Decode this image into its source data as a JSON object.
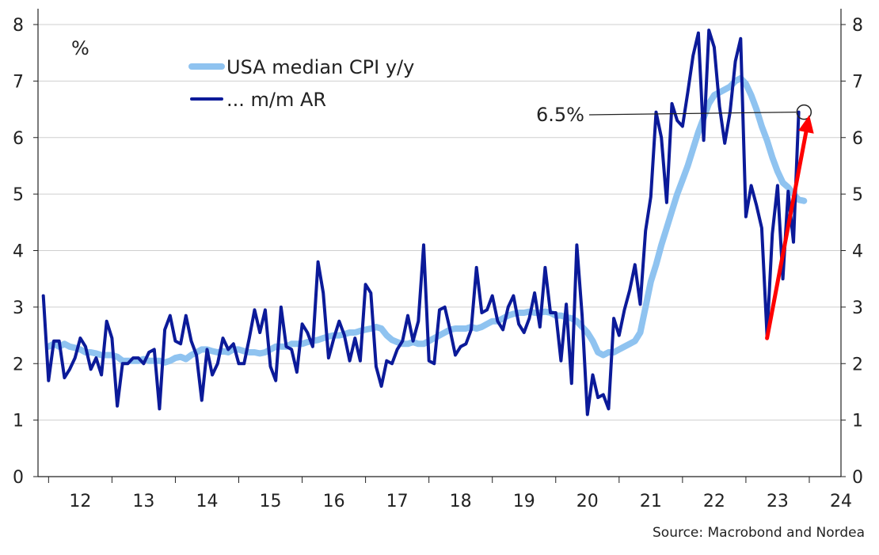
{
  "chart_data": {
    "type": "line",
    "unit_label": "%",
    "source": "Source: Macrobond and Nordea",
    "ylim": [
      0,
      8
    ],
    "y_ticks": [
      "0",
      "1",
      "2",
      "3",
      "4",
      "5",
      "6",
      "7",
      "8"
    ],
    "x_ticks": [
      "12",
      "13",
      "14",
      "15",
      "16",
      "17",
      "18",
      "19",
      "20",
      "21",
      "22",
      "23",
      "24"
    ],
    "xlim": [
      "2011-11",
      "2024-07"
    ],
    "grid": true,
    "legend_position": "top-left",
    "annotation": {
      "label": "6.5%",
      "date": "2023-12",
      "value": 6.45
    },
    "trend_arrow": {
      "from": {
        "date": "2023-05",
        "value": 2.45
      },
      "to": {
        "date": "2024-01",
        "value": 6.4
      },
      "color": "#ff0000"
    },
    "series": [
      {
        "name": "USA median CPI y/y",
        "color": "#8fc3f0",
        "points": [
          [
            "2012-01",
            2.3
          ],
          [
            "2012-02",
            2.35
          ],
          [
            "2012-03",
            2.3
          ],
          [
            "2012-04",
            2.35
          ],
          [
            "2012-05",
            2.3
          ],
          [
            "2012-06",
            2.28
          ],
          [
            "2012-07",
            2.25
          ],
          [
            "2012-08",
            2.2
          ],
          [
            "2012-09",
            2.2
          ],
          [
            "2012-10",
            2.18
          ],
          [
            "2012-11",
            2.15
          ],
          [
            "2012-12",
            2.15
          ],
          [
            "2013-01",
            2.15
          ],
          [
            "2013-02",
            2.12
          ],
          [
            "2013-03",
            2.05
          ],
          [
            "2013-04",
            2.05
          ],
          [
            "2013-05",
            2.05
          ],
          [
            "2013-06",
            2.05
          ],
          [
            "2013-07",
            2.08
          ],
          [
            "2013-08",
            2.05
          ],
          [
            "2013-09",
            2.05
          ],
          [
            "2013-10",
            2.05
          ],
          [
            "2013-11",
            2.02
          ],
          [
            "2013-12",
            2.05
          ],
          [
            "2014-01",
            2.1
          ],
          [
            "2014-02",
            2.12
          ],
          [
            "2014-03",
            2.08
          ],
          [
            "2014-04",
            2.15
          ],
          [
            "2014-05",
            2.2
          ],
          [
            "2014-06",
            2.25
          ],
          [
            "2014-07",
            2.25
          ],
          [
            "2014-08",
            2.22
          ],
          [
            "2014-09",
            2.2
          ],
          [
            "2014-10",
            2.22
          ],
          [
            "2014-11",
            2.2
          ],
          [
            "2014-12",
            2.25
          ],
          [
            "2015-01",
            2.25
          ],
          [
            "2015-02",
            2.22
          ],
          [
            "2015-03",
            2.2
          ],
          [
            "2015-04",
            2.2
          ],
          [
            "2015-05",
            2.18
          ],
          [
            "2015-06",
            2.2
          ],
          [
            "2015-07",
            2.25
          ],
          [
            "2015-08",
            2.3
          ],
          [
            "2015-09",
            2.3
          ],
          [
            "2015-10",
            2.3
          ],
          [
            "2015-11",
            2.35
          ],
          [
            "2015-12",
            2.35
          ],
          [
            "2016-01",
            2.35
          ],
          [
            "2016-02",
            2.38
          ],
          [
            "2016-03",
            2.4
          ],
          [
            "2016-04",
            2.42
          ],
          [
            "2016-05",
            2.45
          ],
          [
            "2016-06",
            2.48
          ],
          [
            "2016-07",
            2.5
          ],
          [
            "2016-08",
            2.5
          ],
          [
            "2016-09",
            2.52
          ],
          [
            "2016-10",
            2.55
          ],
          [
            "2016-11",
            2.55
          ],
          [
            "2016-12",
            2.58
          ],
          [
            "2017-01",
            2.6
          ],
          [
            "2017-02",
            2.62
          ],
          [
            "2017-03",
            2.65
          ],
          [
            "2017-04",
            2.62
          ],
          [
            "2017-05",
            2.5
          ],
          [
            "2017-06",
            2.42
          ],
          [
            "2017-07",
            2.38
          ],
          [
            "2017-08",
            2.35
          ],
          [
            "2017-09",
            2.35
          ],
          [
            "2017-10",
            2.38
          ],
          [
            "2017-11",
            2.35
          ],
          [
            "2017-12",
            2.35
          ],
          [
            "2018-01",
            2.4
          ],
          [
            "2018-02",
            2.45
          ],
          [
            "2018-03",
            2.5
          ],
          [
            "2018-04",
            2.55
          ],
          [
            "2018-05",
            2.6
          ],
          [
            "2018-06",
            2.62
          ],
          [
            "2018-07",
            2.62
          ],
          [
            "2018-08",
            2.62
          ],
          [
            "2018-09",
            2.65
          ],
          [
            "2018-10",
            2.62
          ],
          [
            "2018-11",
            2.65
          ],
          [
            "2018-12",
            2.7
          ],
          [
            "2019-01",
            2.75
          ],
          [
            "2019-02",
            2.75
          ],
          [
            "2019-03",
            2.8
          ],
          [
            "2019-04",
            2.85
          ],
          [
            "2019-05",
            2.88
          ],
          [
            "2019-06",
            2.9
          ],
          [
            "2019-07",
            2.9
          ],
          [
            "2019-08",
            2.92
          ],
          [
            "2019-09",
            2.9
          ],
          [
            "2019-10",
            2.9
          ],
          [
            "2019-11",
            2.92
          ],
          [
            "2019-12",
            2.9
          ],
          [
            "2020-01",
            2.85
          ],
          [
            "2020-02",
            2.85
          ],
          [
            "2020-03",
            2.82
          ],
          [
            "2020-04",
            2.8
          ],
          [
            "2020-05",
            2.75
          ],
          [
            "2020-06",
            2.65
          ],
          [
            "2020-07",
            2.55
          ],
          [
            "2020-08",
            2.4
          ],
          [
            "2020-09",
            2.2
          ],
          [
            "2020-10",
            2.15
          ],
          [
            "2020-11",
            2.2
          ],
          [
            "2020-12",
            2.2
          ],
          [
            "2021-01",
            2.25
          ],
          [
            "2021-02",
            2.3
          ],
          [
            "2021-03",
            2.35
          ],
          [
            "2021-04",
            2.4
          ],
          [
            "2021-05",
            2.55
          ],
          [
            "2021-06",
            3.0
          ],
          [
            "2021-07",
            3.45
          ],
          [
            "2021-08",
            3.75
          ],
          [
            "2021-09",
            4.1
          ],
          [
            "2021-10",
            4.4
          ],
          [
            "2021-11",
            4.7
          ],
          [
            "2021-12",
            5.0
          ],
          [
            "2022-01",
            5.25
          ],
          [
            "2022-02",
            5.5
          ],
          [
            "2022-03",
            5.8
          ],
          [
            "2022-04",
            6.1
          ],
          [
            "2022-05",
            6.35
          ],
          [
            "2022-06",
            6.6
          ],
          [
            "2022-07",
            6.75
          ],
          [
            "2022-08",
            6.8
          ],
          [
            "2022-09",
            6.85
          ],
          [
            "2022-10",
            6.9
          ],
          [
            "2022-11",
            7.0
          ],
          [
            "2022-12",
            7.05
          ],
          [
            "2023-01",
            6.95
          ],
          [
            "2023-02",
            6.75
          ],
          [
            "2023-03",
            6.5
          ],
          [
            "2023-04",
            6.2
          ],
          [
            "2023-05",
            5.95
          ],
          [
            "2023-06",
            5.65
          ],
          [
            "2023-07",
            5.4
          ],
          [
            "2023-08",
            5.2
          ],
          [
            "2023-09",
            5.12
          ],
          [
            "2023-10",
            5.0
          ],
          [
            "2023-11",
            4.9
          ],
          [
            "2023-12",
            4.88
          ]
        ]
      },
      {
        "name": "... m/m AR",
        "color": "#0b1a99",
        "points": [
          [
            "2011-12",
            3.2
          ],
          [
            "2012-01",
            1.7
          ],
          [
            "2012-02",
            2.4
          ],
          [
            "2012-03",
            2.4
          ],
          [
            "2012-04",
            1.75
          ],
          [
            "2012-05",
            1.9
          ],
          [
            "2012-06",
            2.1
          ],
          [
            "2012-07",
            2.45
          ],
          [
            "2012-08",
            2.3
          ],
          [
            "2012-09",
            1.9
          ],
          [
            "2012-10",
            2.1
          ],
          [
            "2012-11",
            1.8
          ],
          [
            "2012-12",
            2.75
          ],
          [
            "2013-01",
            2.45
          ],
          [
            "2013-02",
            1.25
          ],
          [
            "2013-03",
            2.0
          ],
          [
            "2013-04",
            2.0
          ],
          [
            "2013-05",
            2.1
          ],
          [
            "2013-06",
            2.1
          ],
          [
            "2013-07",
            2.0
          ],
          [
            "2013-08",
            2.2
          ],
          [
            "2013-09",
            2.25
          ],
          [
            "2013-10",
            1.2
          ],
          [
            "2013-11",
            2.6
          ],
          [
            "2013-12",
            2.85
          ],
          [
            "2014-01",
            2.4
          ],
          [
            "2014-02",
            2.35
          ],
          [
            "2014-03",
            2.85
          ],
          [
            "2014-04",
            2.4
          ],
          [
            "2014-05",
            2.15
          ],
          [
            "2014-06",
            1.35
          ],
          [
            "2014-07",
            2.25
          ],
          [
            "2014-08",
            1.8
          ],
          [
            "2014-09",
            2.0
          ],
          [
            "2014-10",
            2.45
          ],
          [
            "2014-11",
            2.25
          ],
          [
            "2014-12",
            2.35
          ],
          [
            "2015-01",
            2.0
          ],
          [
            "2015-02",
            2.0
          ],
          [
            "2015-03",
            2.45
          ],
          [
            "2015-04",
            2.95
          ],
          [
            "2015-05",
            2.55
          ],
          [
            "2015-06",
            2.95
          ],
          [
            "2015-07",
            1.95
          ],
          [
            "2015-08",
            1.7
          ],
          [
            "2015-09",
            3.0
          ],
          [
            "2015-10",
            2.3
          ],
          [
            "2015-11",
            2.25
          ],
          [
            "2015-12",
            1.85
          ],
          [
            "2016-01",
            2.7
          ],
          [
            "2016-02",
            2.55
          ],
          [
            "2016-03",
            2.3
          ],
          [
            "2016-04",
            3.8
          ],
          [
            "2016-05",
            3.25
          ],
          [
            "2016-06",
            2.1
          ],
          [
            "2016-07",
            2.45
          ],
          [
            "2016-08",
            2.75
          ],
          [
            "2016-09",
            2.5
          ],
          [
            "2016-10",
            2.05
          ],
          [
            "2016-11",
            2.45
          ],
          [
            "2016-12",
            2.05
          ],
          [
            "2017-01",
            3.4
          ],
          [
            "2017-02",
            3.25
          ],
          [
            "2017-03",
            1.95
          ],
          [
            "2017-04",
            1.6
          ],
          [
            "2017-05",
            2.05
          ],
          [
            "2017-06",
            2.0
          ],
          [
            "2017-07",
            2.25
          ],
          [
            "2017-08",
            2.4
          ],
          [
            "2017-09",
            2.85
          ],
          [
            "2017-10",
            2.4
          ],
          [
            "2017-11",
            2.75
          ],
          [
            "2017-12",
            4.1
          ],
          [
            "2018-01",
            2.05
          ],
          [
            "2018-02",
            2.0
          ],
          [
            "2018-03",
            2.95
          ],
          [
            "2018-04",
            3.0
          ],
          [
            "2018-05",
            2.6
          ],
          [
            "2018-06",
            2.15
          ],
          [
            "2018-07",
            2.3
          ],
          [
            "2018-08",
            2.35
          ],
          [
            "2018-09",
            2.6
          ],
          [
            "2018-10",
            3.7
          ],
          [
            "2018-11",
            2.9
          ],
          [
            "2018-12",
            2.95
          ],
          [
            "2019-01",
            3.2
          ],
          [
            "2019-02",
            2.75
          ],
          [
            "2019-03",
            2.6
          ],
          [
            "2019-04",
            3.0
          ],
          [
            "2019-05",
            3.2
          ],
          [
            "2019-06",
            2.7
          ],
          [
            "2019-07",
            2.55
          ],
          [
            "2019-08",
            2.8
          ],
          [
            "2019-09",
            3.25
          ],
          [
            "2019-10",
            2.65
          ],
          [
            "2019-11",
            3.7
          ],
          [
            "2019-12",
            2.9
          ],
          [
            "2020-01",
            2.9
          ],
          [
            "2020-02",
            2.05
          ],
          [
            "2020-03",
            3.05
          ],
          [
            "2020-04",
            1.65
          ],
          [
            "2020-05",
            4.1
          ],
          [
            "2020-06",
            2.85
          ],
          [
            "2020-07",
            1.1
          ],
          [
            "2020-08",
            1.8
          ],
          [
            "2020-09",
            1.4
          ],
          [
            "2020-10",
            1.45
          ],
          [
            "2020-11",
            1.2
          ],
          [
            "2020-12",
            2.8
          ],
          [
            "2021-01",
            2.5
          ],
          [
            "2021-02",
            2.95
          ],
          [
            "2021-03",
            3.3
          ],
          [
            "2021-04",
            3.75
          ],
          [
            "2021-05",
            3.05
          ],
          [
            "2021-06",
            4.35
          ],
          [
            "2021-07",
            4.95
          ],
          [
            "2021-08",
            6.45
          ],
          [
            "2021-09",
            6.0
          ],
          [
            "2021-10",
            4.85
          ],
          [
            "2021-11",
            6.6
          ],
          [
            "2021-12",
            6.3
          ],
          [
            "2022-01",
            6.2
          ],
          [
            "2022-02",
            6.8
          ],
          [
            "2022-03",
            7.45
          ],
          [
            "2022-04",
            7.85
          ],
          [
            "2022-05",
            5.95
          ],
          [
            "2022-06",
            7.9
          ],
          [
            "2022-07",
            7.6
          ],
          [
            "2022-08",
            6.55
          ],
          [
            "2022-09",
            5.9
          ],
          [
            "2022-10",
            6.45
          ],
          [
            "2022-11",
            7.35
          ],
          [
            "2022-12",
            7.75
          ],
          [
            "2023-01",
            4.6
          ],
          [
            "2023-02",
            5.15
          ],
          [
            "2023-03",
            4.8
          ],
          [
            "2023-04",
            4.4
          ],
          [
            "2023-05",
            2.5
          ],
          [
            "2023-06",
            4.3
          ],
          [
            "2023-07",
            5.15
          ],
          [
            "2023-08",
            3.5
          ],
          [
            "2023-09",
            5.05
          ],
          [
            "2023-10",
            4.15
          ],
          [
            "2023-11",
            6.45
          ]
        ]
      }
    ]
  }
}
